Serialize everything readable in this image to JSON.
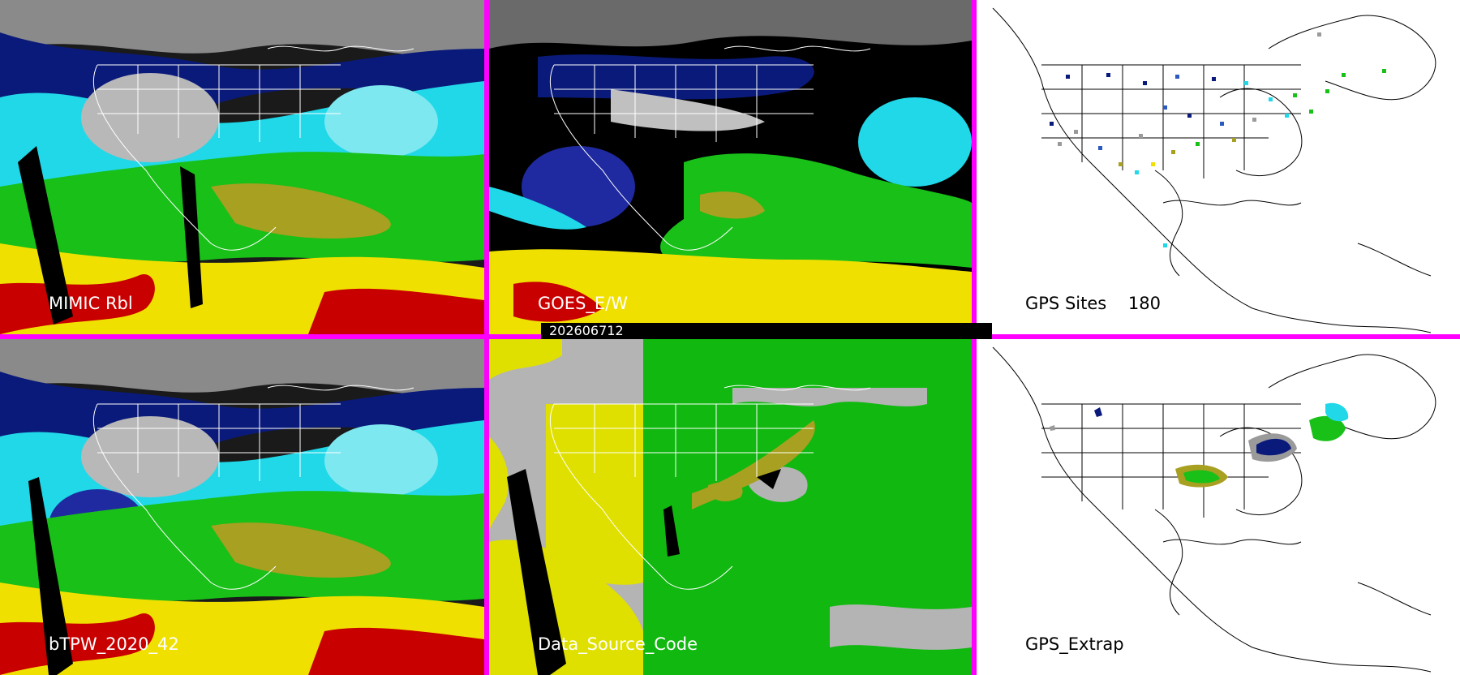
{
  "panels": {
    "mimic": {
      "label": "MIMIC Rbl"
    },
    "goes": {
      "label": "GOES_E/W"
    },
    "gps_sites": {
      "label": "GPS Sites    180"
    },
    "btpw": {
      "label": "bTPW_2020_42"
    },
    "data_source": {
      "label": "Data_Source_Code"
    },
    "gps_extrap": {
      "label": "GPS_Extrap"
    }
  },
  "timestamp": "202606712",
  "colors": {
    "frame": "#ff00ff",
    "pw_very_low": "#3a3a3a",
    "pw_low": "#9a9a9a",
    "pw_dry": "#0a1a7a",
    "pw_mid_blue": "#2a5abf",
    "pw_cyan": "#20d8e8",
    "pw_green": "#18c018",
    "pw_olive": "#a8a020",
    "pw_yellow": "#f0e000",
    "pw_red": "#c80000",
    "dsc_gray": "#b4b4b4",
    "dsc_yellow": "#e0e000",
    "dsc_green": "#10b810"
  }
}
